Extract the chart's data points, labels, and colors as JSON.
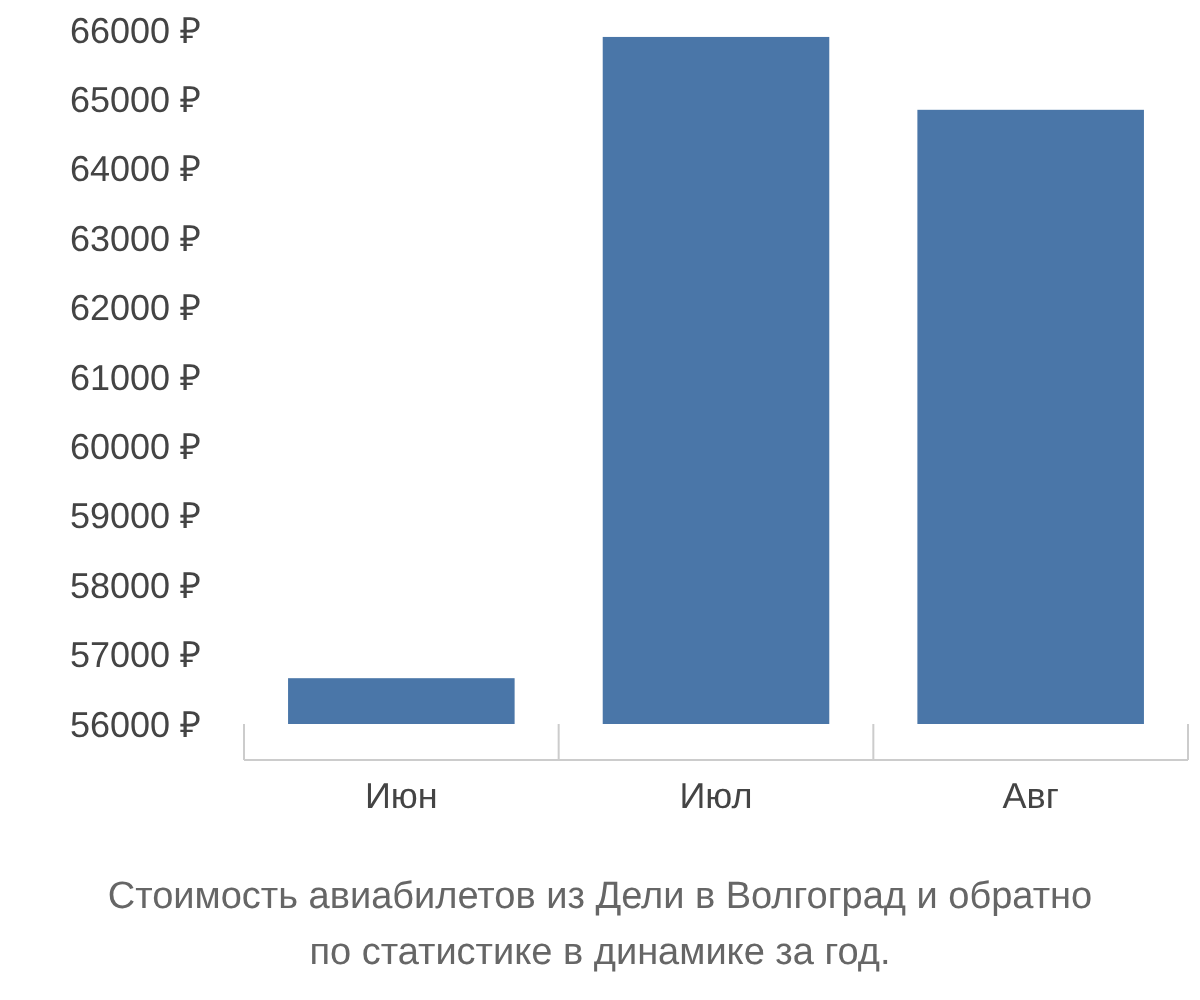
{
  "chart_data": {
    "type": "bar",
    "categories": [
      "Июн",
      "Июл",
      "Авг"
    ],
    "values": [
      56660,
      65900,
      64850
    ],
    "color": "#4a76a8",
    "ylim": [
      56000,
      66000
    ],
    "yticks": [
      {
        "value": 56000,
        "label": "56000 ₽"
      },
      {
        "value": 57000,
        "label": "57000 ₽"
      },
      {
        "value": 58000,
        "label": "58000 ₽"
      },
      {
        "value": 59000,
        "label": "59000 ₽"
      },
      {
        "value": 60000,
        "label": "60000 ₽"
      },
      {
        "value": 61000,
        "label": "61000 ₽"
      },
      {
        "value": 62000,
        "label": "62000 ₽"
      },
      {
        "value": 63000,
        "label": "63000 ₽"
      },
      {
        "value": 64000,
        "label": "64000 ₽"
      },
      {
        "value": 65000,
        "label": "65000 ₽"
      },
      {
        "value": 66000,
        "label": "66000 ₽"
      }
    ],
    "annotations": [
      "Стоимость авиабилетов из Дели в Волгоград и обратно",
      "по статистике в динамике за год."
    ]
  }
}
